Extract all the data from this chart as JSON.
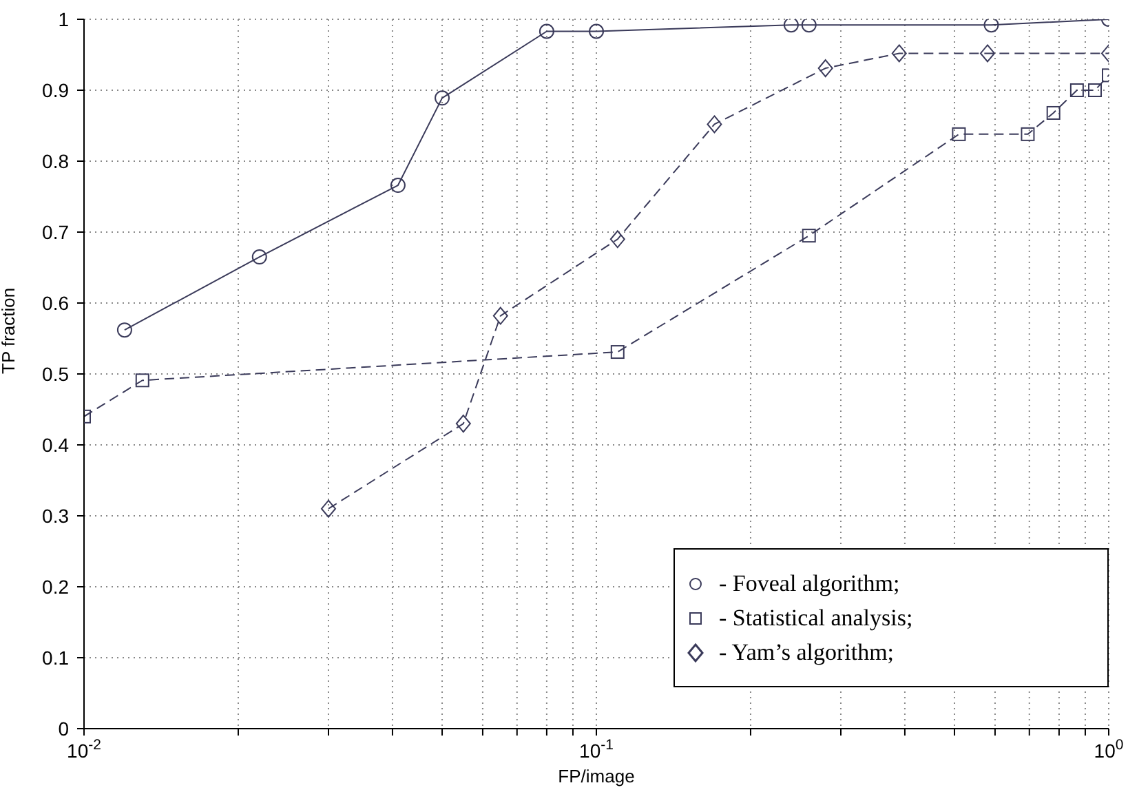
{
  "chart_data": {
    "type": "line",
    "xlabel": "FP/image",
    "ylabel": "TP fraction",
    "xlim": [
      0.01,
      1
    ],
    "ylim": [
      0,
      1
    ],
    "log": "x",
    "xticks": [
      {
        "value": 0.01,
        "label": "10$^{-2}$"
      },
      {
        "value": 0.02,
        "label": null
      },
      {
        "value": 0.03,
        "label": null
      },
      {
        "value": 0.04,
        "label": null
      },
      {
        "value": 0.05,
        "label": null
      },
      {
        "value": 0.06,
        "label": null
      },
      {
        "value": 0.07,
        "label": null
      },
      {
        "value": 0.08,
        "label": null
      },
      {
        "value": 0.09,
        "label": null
      },
      {
        "value": 0.1,
        "label": "10$^{-1}$"
      },
      {
        "value": 0.2,
        "label": null
      },
      {
        "value": 0.3,
        "label": null
      },
      {
        "value": 0.4,
        "label": null
      },
      {
        "value": 0.5,
        "label": null
      },
      {
        "value": 0.6,
        "label": null
      },
      {
        "value": 0.7,
        "label": null
      },
      {
        "value": 0.8,
        "label": null
      },
      {
        "value": 0.9,
        "label": null
      },
      {
        "value": 1,
        "label": "10$^{0}$"
      }
    ],
    "yticks": [
      0,
      0.1,
      0.2,
      0.3,
      0.4,
      0.5,
      0.6,
      0.7,
      0.8,
      0.9,
      1
    ],
    "grid": true,
    "legend": "bottom right",
    "series": [
      {
        "name": "- Foveal algorithm;",
        "color": "#3a3a5a",
        "marker": "circle",
        "line_style": "solid",
        "x": [
          0.012,
          0.022,
          0.041,
          0.05,
          0.08,
          0.1,
          0.24,
          0.26,
          0.59,
          1
        ],
        "values": [
          0.562,
          0.665,
          0.766,
          0.889,
          0.983,
          0.983,
          0.992,
          0.992,
          0.992,
          1
        ]
      },
      {
        "name": "- Statistical analysis;",
        "color": "#3a3a5a",
        "marker": "square",
        "line_style": "dashed",
        "x": [
          0.01,
          0.013,
          0.11,
          0.26,
          0.51,
          0.695,
          0.78,
          0.867,
          0.94,
          1
        ],
        "values": [
          0.44,
          0.491,
          0.531,
          0.695,
          0.838,
          0.838,
          0.868,
          0.9,
          0.9,
          0.921
        ]
      },
      {
        "name": "- Yam’s algorithm;",
        "color": "#3a3a5a",
        "marker": "diamond",
        "line_style": "dashed",
        "x": [
          0.03,
          0.055,
          0.065,
          0.11,
          0.17,
          0.28,
          0.39,
          0.58,
          1
        ],
        "values": [
          0.31,
          0.43,
          0.582,
          0.69,
          0.852,
          0.931,
          0.952,
          0.952,
          0.952
        ]
      }
    ]
  }
}
